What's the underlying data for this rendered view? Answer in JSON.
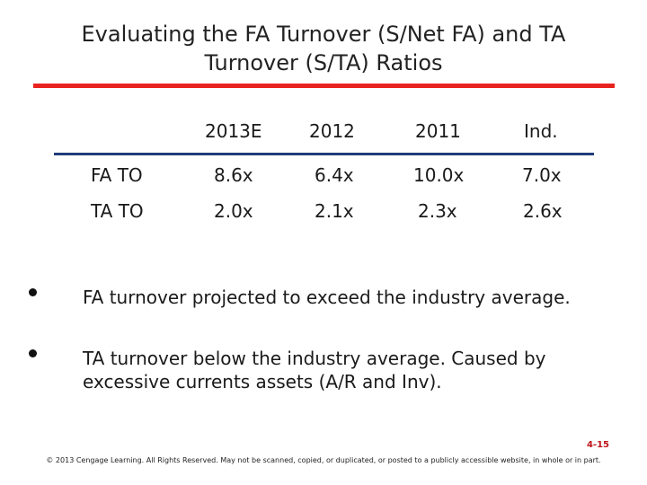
{
  "slide": {
    "title": "Evaluating the FA Turnover (S/Net FA) and TA Turnover (S/TA) Ratios",
    "accent_color": "#e8231e",
    "rule_color": "#1f3d7a"
  },
  "table": {
    "columns": [
      "2013E",
      "2012",
      "2011",
      "Ind."
    ],
    "rows": [
      {
        "label": "FA TO",
        "values": [
          "8.6x",
          "6.4x",
          "10.0x",
          "7.0x"
        ]
      },
      {
        "label": "TA TO",
        "values": [
          "2.0x",
          "2.1x",
          "2.3x",
          "2.6x"
        ]
      }
    ]
  },
  "bullets": [
    "FA turnover projected to exceed the industry average.",
    "TA turnover below the industry average.  Caused by excessive currents assets (A/R and Inv)."
  ],
  "footer": {
    "page_number": "4-15",
    "copyright": "© 2013 Cengage Learning. All Rights Reserved. May not be scanned, copied, or duplicated, or posted to a publicly accessible website, in whole or in part."
  }
}
